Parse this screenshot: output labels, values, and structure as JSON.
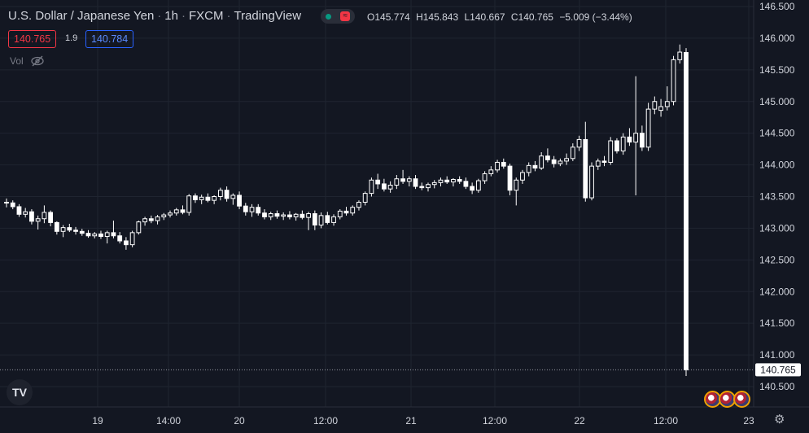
{
  "header": {
    "symbol": "U.S. Dollar / Japanese Yen",
    "interval": "1h",
    "exchange": "FXCM",
    "source": "TradingView",
    "ohlc": {
      "open_label": "O",
      "open": "145.774",
      "high_label": "H",
      "high": "145.843",
      "low_label": "L",
      "low": "140.667",
      "close_label": "C",
      "close": "140.765",
      "change": "−5.009 (−3.44%)"
    }
  },
  "trade": {
    "sell_price": "140.765",
    "spread": "1.9",
    "buy_price": "140.784"
  },
  "volume_label": "Vol",
  "logo_text": "TV",
  "icons": [
    "eye-off-icon",
    "tradingview-logo-icon",
    "us-flag-icon",
    "settings-gear-icon"
  ],
  "colors": {
    "background": "#131722",
    "candle": "#ffffff",
    "grid": "#1f2430",
    "text": "#d1d4dc",
    "sell": "#f23645",
    "buy": "#2962ff"
  },
  "last_price_label": "140.765",
  "chart_data": {
    "type": "candlestick",
    "y_range": [
      140.4,
      146.6
    ],
    "y_ticks": [
      "146.500",
      "146.000",
      "145.500",
      "145.000",
      "144.500",
      "144.000",
      "143.500",
      "143.000",
      "142.500",
      "142.000",
      "141.500",
      "141.000",
      "140.500"
    ],
    "x_ticks": [
      "19",
      "14:00",
      "20",
      "12:00",
      "21",
      "12:00",
      "22",
      "12:00",
      "23"
    ],
    "candles": [
      [
        143.41,
        143.47,
        143.33,
        143.4
      ],
      [
        143.4,
        143.44,
        143.3,
        143.34
      ],
      [
        143.34,
        143.38,
        143.18,
        143.22
      ],
      [
        143.22,
        143.32,
        143.17,
        143.26
      ],
      [
        143.26,
        143.3,
        143.06,
        143.11
      ],
      [
        143.11,
        143.2,
        142.98,
        143.15
      ],
      [
        143.15,
        143.36,
        143.08,
        143.25
      ],
      [
        143.25,
        143.28,
        143.03,
        143.09
      ],
      [
        143.09,
        143.11,
        142.9,
        142.95
      ],
      [
        142.95,
        143.05,
        142.86,
        143.01
      ],
      [
        143.01,
        143.07,
        142.94,
        142.97
      ],
      [
        142.97,
        143.02,
        142.9,
        142.95
      ],
      [
        142.95,
        142.99,
        142.88,
        142.92
      ],
      [
        142.92,
        142.97,
        142.85,
        142.88
      ],
      [
        142.88,
        142.94,
        142.84,
        142.91
      ],
      [
        142.91,
        142.96,
        142.83,
        142.87
      ],
      [
        142.87,
        142.96,
        142.76,
        142.93
      ],
      [
        142.93,
        143.12,
        142.84,
        142.88
      ],
      [
        142.88,
        142.94,
        142.76,
        142.8
      ],
      [
        142.8,
        142.86,
        142.66,
        142.74
      ],
      [
        142.74,
        142.96,
        142.7,
        142.93
      ],
      [
        142.93,
        143.12,
        142.9,
        143.1
      ],
      [
        143.1,
        143.18,
        143.04,
        143.15
      ],
      [
        143.15,
        143.2,
        143.08,
        143.12
      ],
      [
        143.12,
        143.21,
        143.06,
        143.18
      ],
      [
        143.18,
        143.24,
        143.13,
        143.21
      ],
      [
        143.21,
        143.28,
        143.17,
        143.24
      ],
      [
        143.24,
        143.32,
        143.2,
        143.29
      ],
      [
        143.29,
        143.36,
        143.22,
        143.25
      ],
      [
        143.25,
        143.54,
        143.2,
        143.51
      ],
      [
        143.51,
        143.55,
        143.4,
        143.45
      ],
      [
        143.45,
        143.53,
        143.38,
        143.49
      ],
      [
        143.49,
        143.55,
        143.41,
        143.44
      ],
      [
        143.44,
        143.52,
        143.38,
        143.5
      ],
      [
        143.5,
        143.64,
        143.44,
        143.6
      ],
      [
        143.6,
        143.66,
        143.42,
        143.47
      ],
      [
        143.47,
        143.55,
        143.37,
        143.52
      ],
      [
        143.52,
        143.58,
        143.3,
        143.35
      ],
      [
        143.35,
        143.4,
        143.2,
        143.26
      ],
      [
        143.26,
        143.38,
        143.18,
        143.33
      ],
      [
        143.33,
        143.38,
        143.2,
        143.24
      ],
      [
        143.24,
        143.3,
        143.14,
        143.18
      ],
      [
        143.18,
        143.26,
        143.13,
        143.23
      ],
      [
        143.23,
        143.28,
        143.15,
        143.19
      ],
      [
        143.19,
        143.25,
        143.13,
        143.21
      ],
      [
        143.21,
        143.27,
        143.14,
        143.18
      ],
      [
        143.18,
        143.24,
        143.12,
        143.22
      ],
      [
        143.22,
        143.28,
        143.14,
        143.17
      ],
      [
        143.17,
        143.26,
        142.97,
        143.23
      ],
      [
        143.23,
        143.28,
        142.97,
        143.05
      ],
      [
        143.05,
        143.25,
        143.0,
        143.2
      ],
      [
        143.2,
        143.26,
        143.06,
        143.09
      ],
      [
        143.09,
        143.22,
        143.04,
        143.18
      ],
      [
        143.18,
        143.3,
        143.14,
        143.27
      ],
      [
        143.27,
        143.34,
        143.2,
        143.24
      ],
      [
        143.24,
        143.36,
        143.2,
        143.33
      ],
      [
        143.33,
        143.44,
        143.28,
        143.41
      ],
      [
        143.41,
        143.58,
        143.36,
        143.55
      ],
      [
        143.55,
        143.8,
        143.5,
        143.76
      ],
      [
        143.76,
        143.86,
        143.62,
        143.7
      ],
      [
        143.7,
        143.78,
        143.58,
        143.62
      ],
      [
        143.62,
        143.74,
        143.56,
        143.68
      ],
      [
        143.68,
        143.84,
        143.62,
        143.78
      ],
      [
        143.78,
        143.92,
        143.7,
        143.74
      ],
      [
        143.74,
        143.82,
        143.66,
        143.78
      ],
      [
        143.78,
        143.84,
        143.62,
        143.66
      ],
      [
        143.66,
        143.72,
        143.6,
        143.64
      ],
      [
        143.64,
        143.72,
        143.58,
        143.69
      ],
      [
        143.69,
        143.76,
        143.63,
        143.72
      ],
      [
        143.72,
        143.8,
        143.66,
        143.76
      ],
      [
        143.76,
        143.82,
        143.7,
        143.73
      ],
      [
        143.73,
        143.79,
        143.66,
        143.77
      ],
      [
        143.77,
        143.82,
        143.7,
        143.74
      ],
      [
        143.74,
        143.8,
        143.62,
        143.66
      ],
      [
        143.66,
        143.72,
        143.54,
        143.6
      ],
      [
        143.6,
        143.78,
        143.56,
        143.75
      ],
      [
        143.75,
        143.9,
        143.7,
        143.86
      ],
      [
        143.86,
        143.98,
        143.82,
        143.92
      ],
      [
        143.92,
        144.08,
        143.88,
        144.04
      ],
      [
        144.04,
        144.1,
        143.94,
        143.98
      ],
      [
        143.98,
        144.02,
        143.52,
        143.6
      ],
      [
        143.6,
        143.8,
        143.36,
        143.76
      ],
      [
        143.76,
        143.92,
        143.7,
        143.88
      ],
      [
        143.88,
        144.04,
        143.82,
        143.99
      ],
      [
        143.99,
        144.06,
        143.9,
        143.95
      ],
      [
        143.95,
        144.2,
        143.92,
        144.14
      ],
      [
        144.14,
        144.26,
        144.04,
        144.08
      ],
      [
        144.08,
        144.14,
        143.96,
        144.02
      ],
      [
        144.02,
        144.1,
        143.98,
        144.06
      ],
      [
        144.06,
        144.18,
        144.0,
        144.1
      ],
      [
        144.1,
        144.34,
        144.06,
        144.28
      ],
      [
        144.28,
        144.46,
        144.22,
        144.4
      ],
      [
        144.4,
        144.68,
        143.42,
        143.48
      ],
      [
        143.48,
        144.04,
        143.44,
        143.98
      ],
      [
        143.98,
        144.1,
        143.92,
        144.06
      ],
      [
        144.06,
        144.14,
        143.98,
        144.04
      ],
      [
        144.04,
        144.44,
        144.0,
        144.38
      ],
      [
        144.38,
        144.42,
        144.18,
        144.22
      ],
      [
        144.22,
        144.5,
        144.16,
        144.44
      ],
      [
        144.44,
        144.58,
        144.3,
        144.36
      ],
      [
        144.36,
        145.4,
        143.52,
        144.5
      ],
      [
        144.5,
        144.62,
        144.22,
        144.28
      ],
      [
        144.28,
        144.98,
        144.22,
        144.88
      ],
      [
        144.88,
        145.08,
        144.8,
        145.0
      ],
      [
        144.86,
        145.04,
        144.76,
        144.92
      ],
      [
        144.92,
        145.24,
        144.86,
        145.0
      ],
      [
        145.0,
        145.72,
        144.94,
        145.66
      ],
      [
        145.66,
        145.9,
        145.6,
        145.78
      ],
      [
        145.774,
        145.843,
        140.667,
        140.765
      ]
    ]
  }
}
